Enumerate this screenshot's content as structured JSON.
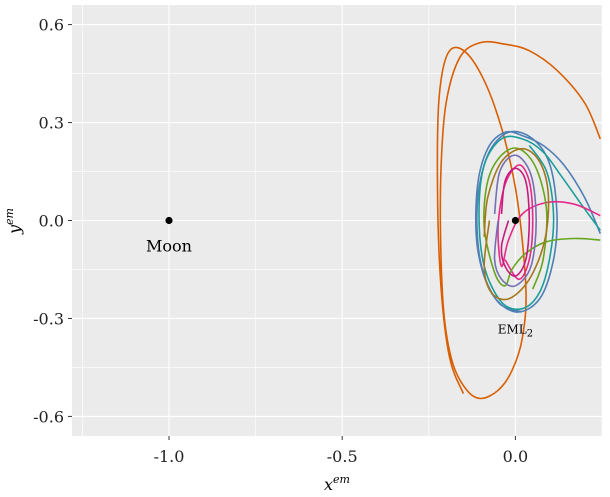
{
  "chart_data": {
    "type": "line",
    "title": "",
    "xlabel": "x",
    "xlabel_sup": "em",
    "ylabel": "y",
    "ylabel_sup": "em",
    "xlim": [
      -1.28,
      0.25
    ],
    "ylim": [
      -0.66,
      0.66
    ],
    "x_ticks": [
      -1.0,
      -0.5,
      0.0
    ],
    "x_tick_labels": [
      "-1.0",
      "-0.5",
      "0.0"
    ],
    "y_ticks": [
      -0.6,
      -0.3,
      0.0,
      0.3,
      0.6
    ],
    "y_tick_labels": [
      "-0.6",
      "-0.3",
      "0.0",
      "0.3",
      "0.6"
    ],
    "grid": true,
    "background": "#ebebeb",
    "points": [
      {
        "name": "Moon",
        "label": "Moon",
        "x": -1.0,
        "y": 0.0
      },
      {
        "name": "EML2",
        "label_main": "EML",
        "label_sub": "2",
        "x": 0.0,
        "y": 0.0
      }
    ],
    "series": [
      {
        "color": "#d95f02",
        "x": [
          0.245,
          0.2,
          0.12,
          0.04,
          -0.03,
          -0.1,
          -0.16,
          -0.2,
          -0.215,
          -0.215,
          -0.205,
          -0.18,
          -0.14,
          -0.1,
          -0.05,
          -0.01,
          0.02,
          0.03,
          0.0,
          -0.06,
          -0.13,
          -0.19,
          -0.22,
          -0.225,
          -0.215,
          -0.19,
          -0.15
        ],
        "y": [
          0.25,
          0.36,
          0.46,
          0.52,
          0.54,
          0.545,
          0.5,
          0.36,
          0.15,
          -0.1,
          -0.3,
          -0.44,
          -0.52,
          -0.545,
          -0.52,
          -0.46,
          -0.36,
          -0.2,
          0.1,
          0.35,
          0.5,
          0.52,
          0.38,
          0.1,
          -0.2,
          -0.42,
          -0.53
        ]
      },
      {
        "color": "#4f7fb5",
        "x": [
          0.245,
          0.2,
          0.14,
          0.08,
          0.02,
          -0.03,
          -0.08,
          -0.11,
          -0.11,
          -0.07,
          0.0,
          0.07,
          0.11,
          0.12,
          0.1,
          0.05,
          -0.02,
          -0.08,
          -0.11,
          -0.1,
          -0.05,
          0.02
        ],
        "y": [
          -0.04,
          0.07,
          0.17,
          0.23,
          0.26,
          0.27,
          0.22,
          0.1,
          -0.08,
          -0.22,
          -0.28,
          -0.24,
          -0.12,
          0.02,
          0.17,
          0.25,
          0.27,
          0.2,
          0.05,
          -0.13,
          -0.25,
          -0.28
        ]
      },
      {
        "color": "#1b9e9a",
        "x": [
          0.245,
          0.19,
          0.13,
          0.08,
          0.02,
          -0.04,
          -0.09,
          -0.105,
          -0.09,
          -0.04,
          0.02,
          0.07,
          0.1,
          0.11,
          0.09,
          0.04
        ],
        "y": [
          -0.03,
          0.05,
          0.14,
          0.21,
          0.25,
          0.25,
          0.17,
          0.02,
          -0.14,
          -0.25,
          -0.27,
          -0.22,
          -0.11,
          0.02,
          0.15,
          0.23
        ]
      },
      {
        "color": "#e7298a",
        "x": [
          0.245,
          0.17,
          0.09,
          0.02,
          -0.02,
          -0.04,
          -0.05,
          -0.03,
          0.01,
          0.04,
          0.05,
          0.04,
          0.01,
          -0.03
        ],
        "y": [
          0.015,
          0.05,
          0.055,
          0.02,
          -0.06,
          -0.14,
          -0.02,
          0.11,
          0.17,
          0.12,
          0.0,
          -0.12,
          -0.18,
          -0.12
        ]
      },
      {
        "color": "#66a61e",
        "x": [
          0.245,
          0.17,
          0.09,
          0.03,
          -0.01,
          -0.03,
          -0.06,
          -0.09,
          -0.08,
          -0.04,
          0.01,
          0.06,
          0.09,
          0.08,
          0.05
        ],
        "y": [
          -0.06,
          -0.055,
          -0.065,
          -0.1,
          -0.15,
          -0.2,
          -0.16,
          -0.02,
          0.12,
          0.2,
          0.22,
          0.16,
          0.03,
          -0.12,
          -0.21
        ]
      },
      {
        "color": "#a6761d",
        "x": [
          -0.075,
          -0.09,
          -0.07,
          -0.02,
          0.04,
          0.085,
          0.095,
          0.07,
          0.02,
          -0.04,
          -0.08,
          -0.09
        ],
        "y": [
          0.0,
          -0.14,
          -0.22,
          -0.24,
          -0.18,
          -0.06,
          0.08,
          0.18,
          0.22,
          0.18,
          0.07,
          -0.05
        ]
      },
      {
        "color": "#7570b3",
        "x": [
          -0.05,
          -0.06,
          -0.04,
          0.0,
          0.045,
          0.06,
          0.045,
          0.0,
          -0.045,
          -0.06
        ],
        "y": [
          0.0,
          -0.12,
          -0.18,
          -0.2,
          -0.14,
          0.0,
          0.14,
          0.2,
          0.15,
          0.02
        ]
      },
      {
        "color": "#c51b7d",
        "x": [
          -0.02,
          -0.04,
          -0.03,
          0.0,
          0.03,
          0.04,
          0.03,
          0.0,
          -0.03,
          -0.04
        ],
        "y": [
          0.0,
          -0.08,
          -0.14,
          -0.17,
          -0.12,
          0.0,
          0.12,
          0.16,
          0.12,
          0.02
        ]
      }
    ]
  }
}
